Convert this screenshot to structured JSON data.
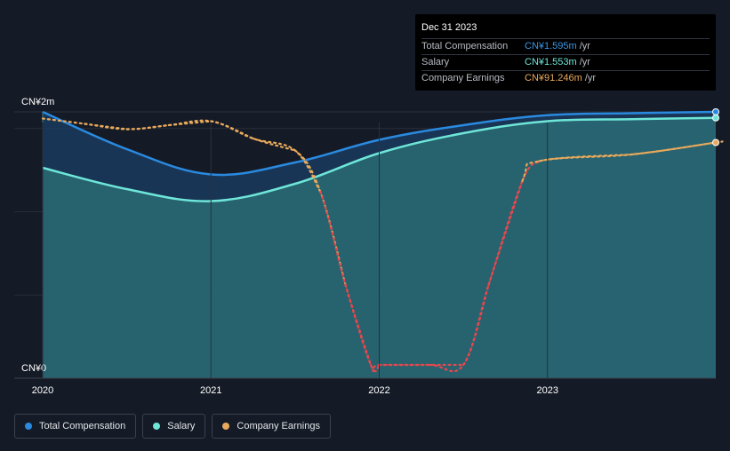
{
  "tooltip": {
    "date": "Dec 31 2023",
    "rows": [
      {
        "label": "Total Compensation",
        "value": "CN¥1.595m",
        "unit": "/yr",
        "color": "#3a96e6"
      },
      {
        "label": "Salary",
        "value": "CN¥1.553m",
        "unit": "/yr",
        "color": "#6ee6d8"
      },
      {
        "label": "Company Earnings",
        "value": "CN¥91.246m",
        "unit": "/yr",
        "color": "#e8a95c"
      }
    ]
  },
  "legend": [
    {
      "label": "Total Compensation",
      "color": "#2a8ae0"
    },
    {
      "label": "Salary",
      "color": "#6ee6d8"
    },
    {
      "label": "Company Earnings",
      "color": "#e8a95c"
    }
  ],
  "chart_data": {
    "type": "line",
    "title": "",
    "xlabel": "",
    "ylabel": "",
    "ylim": [
      0,
      2
    ],
    "y_unit": "CN¥m",
    "xlim": [
      2020.0,
      2024.0
    ],
    "x_ticks": [
      {
        "value": 2020,
        "label": "2020"
      },
      {
        "value": 2021,
        "label": "2021"
      },
      {
        "value": 2022,
        "label": "2022"
      },
      {
        "value": 2023,
        "label": "2023"
      }
    ],
    "y_ticks": [
      {
        "value": 2,
        "label": "CN¥2m"
      },
      {
        "value": 0,
        "label": "CN¥0"
      }
    ],
    "gridlines": [
      0.625,
      1.25,
      1.875
    ],
    "series": [
      {
        "name": "Total Compensation",
        "color": "#2a8ae0",
        "x": [
          2020.0,
          2020.5,
          2021.0,
          2021.5,
          2022.0,
          2022.5,
          2023.0,
          2023.5,
          2024.0
        ],
        "y": [
          2.0,
          1.72,
          1.53,
          1.62,
          1.79,
          1.9,
          1.975,
          1.99,
          2.0
        ]
      },
      {
        "name": "Salary",
        "color": "#6ee6d8",
        "x": [
          2020.0,
          2020.5,
          2021.0,
          2021.5,
          2022.0,
          2022.5,
          2023.0,
          2023.5,
          2024.0
        ],
        "y": [
          1.58,
          1.42,
          1.33,
          1.46,
          1.69,
          1.84,
          1.93,
          1.945,
          1.955
        ]
      },
      {
        "name": "Company Earnings",
        "color": "#e8a95c",
        "style": "dotted",
        "note": "normalized to chart scale",
        "x": [
          2020.0,
          2020.25,
          2020.5,
          2020.75,
          2021.0,
          2021.25,
          2021.5,
          2021.65,
          2021.8,
          2021.95,
          2022.0,
          2022.3,
          2022.5,
          2022.65,
          2022.85,
          2022.95,
          2023.5,
          2024.0
        ],
        "y": [
          1.95,
          1.91,
          1.87,
          1.9,
          1.93,
          1.8,
          1.71,
          1.4,
          0.7,
          0.1,
          0.1,
          0.1,
          0.1,
          0.7,
          1.48,
          1.63,
          1.68,
          1.77
        ]
      }
    ]
  }
}
